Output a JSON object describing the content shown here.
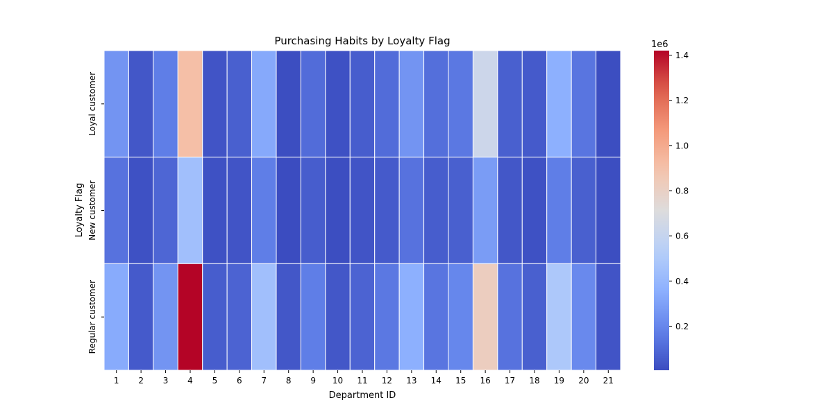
{
  "chart_data": {
    "type": "heatmap",
    "title": "Purchasing Habits by Loyalty Flag",
    "xlabel": "Department ID",
    "ylabel": "Loyalty Flag",
    "x": [
      "1",
      "2",
      "3",
      "4",
      "5",
      "6",
      "7",
      "8",
      "9",
      "10",
      "11",
      "12",
      "13",
      "14",
      "15",
      "16",
      "17",
      "18",
      "19",
      "20",
      "21"
    ],
    "y": [
      "Loyal customer",
      "New customer",
      "Regular customer"
    ],
    "values": [
      [
        250000,
        40000,
        170000,
        910000,
        30000,
        70000,
        330000,
        10000,
        110000,
        20000,
        60000,
        110000,
        250000,
        120000,
        150000,
        630000,
        70000,
        50000,
        360000,
        140000,
        10000
      ],
      [
        130000,
        20000,
        90000,
        440000,
        20000,
        30000,
        170000,
        5000,
        60000,
        10000,
        30000,
        50000,
        130000,
        60000,
        70000,
        280000,
        40000,
        20000,
        170000,
        70000,
        10000
      ],
      [
        340000,
        50000,
        250000,
        1420000,
        60000,
        80000,
        440000,
        40000,
        170000,
        40000,
        80000,
        150000,
        360000,
        140000,
        200000,
        820000,
        130000,
        70000,
        490000,
        210000,
        30000
      ]
    ],
    "colormap": "coolwarm",
    "colors": {
      "low": "#3b4cc0",
      "mid": "#dddcdc",
      "high": "#b40426"
    },
    "colorbar": {
      "vmin": 5000,
      "vmax": 1420000,
      "multiplier": "1e6",
      "ticks": [
        0.2,
        0.4,
        0.6,
        0.8,
        1.0,
        1.2,
        1.4
      ],
      "tick_labels": [
        "0.2",
        "0.4",
        "0.6",
        "0.8",
        "1.0",
        "1.2",
        "1.4"
      ]
    },
    "grid": true
  }
}
